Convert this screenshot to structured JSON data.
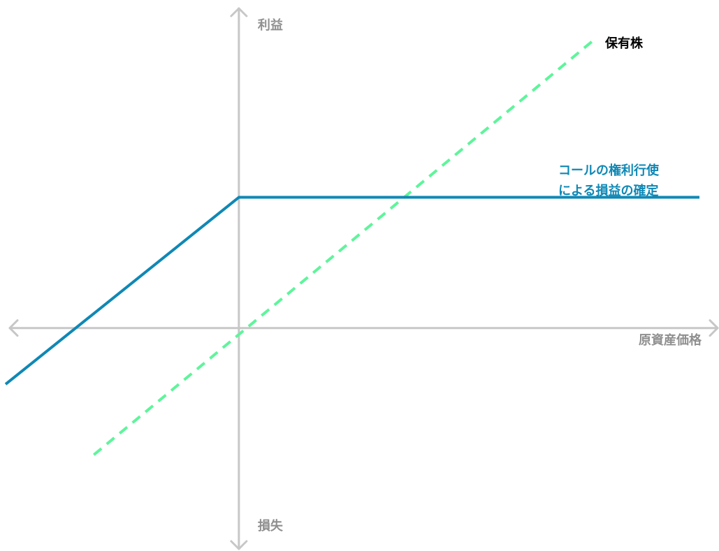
{
  "chart_data": {
    "type": "line",
    "title": "",
    "axes": {
      "x_label": "原資産価格",
      "y_positive_label": "利益",
      "y_negative_label": "損失"
    },
    "grid": false,
    "legend_placement": "inline-right",
    "xlim": [
      -1.56,
      3.08
    ],
    "ylim": [
      -1.3,
      2.28
    ],
    "series": [
      {
        "name": "保有株",
        "style": "dashed",
        "color": "#5ef59b",
        "label_color": "#000000",
        "label_lines": [
          "保有株"
        ],
        "points": [
          [
            -0.97,
            -0.97
          ],
          [
            2.38,
            2.21
          ]
        ]
      },
      {
        "name": "コールの権利行使による損益の確定",
        "style": "solid",
        "color": "#0f88b5",
        "label_color": "#0f88b5",
        "label_lines": [
          "コールの権利行使",
          "による損益の確定"
        ],
        "points": [
          [
            -1.56,
            -0.43
          ],
          [
            0,
            1.0
          ],
          [
            3.08,
            1.0
          ]
        ]
      }
    ]
  }
}
